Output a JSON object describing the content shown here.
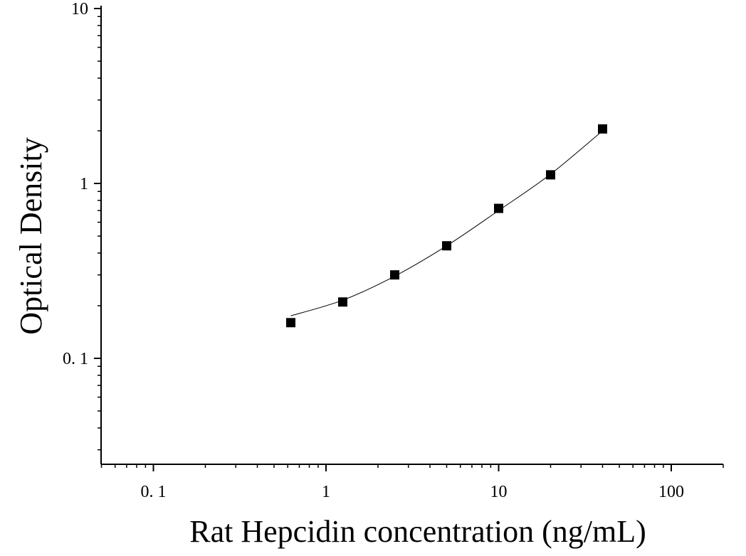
{
  "chart_data": {
    "type": "scatter",
    "title": "",
    "xlabel": "Rat Hepcidin concentration (ng/mL)",
    "ylabel": "Optical Density",
    "x_scale": "log",
    "y_scale": "log",
    "xlim": [
      0.05,
      200
    ],
    "ylim": [
      0.025,
      10
    ],
    "x_ticks": [
      {
        "value": 0.1,
        "label": "0. 1"
      },
      {
        "value": 1,
        "label": "1"
      },
      {
        "value": 10,
        "label": "10"
      },
      {
        "value": 100,
        "label": "100"
      }
    ],
    "y_ticks": [
      {
        "value": 0.1,
        "label": "0. 1"
      },
      {
        "value": 1,
        "label": "1"
      },
      {
        "value": 10,
        "label": "10"
      }
    ],
    "grid": false,
    "legend": "none",
    "marker": "square",
    "series": [
      {
        "x": [
          0.625,
          1.25,
          2.5,
          5,
          10,
          20,
          40
        ],
        "y": [
          0.16,
          0.21,
          0.3,
          0.44,
          0.72,
          1.12,
          2.05
        ]
      }
    ],
    "fit_curve": {
      "x": [
        0.625,
        1.25,
        2.5,
        5,
        10,
        20,
        40
      ],
      "y": [
        0.175,
        0.215,
        0.295,
        0.44,
        0.7,
        1.13,
        2.0
      ]
    },
    "colors": {
      "marker": "#000000",
      "line": "#000000",
      "axis": "#000000"
    }
  }
}
